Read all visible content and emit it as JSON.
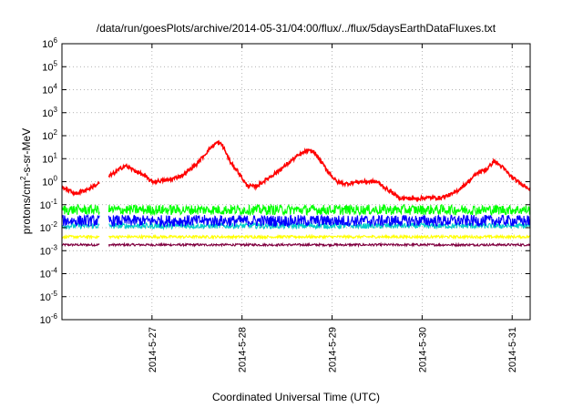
{
  "chart_data": {
    "type": "line",
    "title": "/data/run/goesPlots/archive/2014-05-31/04:00/flux/../flux/5daysEarthDataFluxes.txt",
    "xlabel": "Coordinated Universal Time (UTC)",
    "ylabel": {
      "prefix": "protons/cm",
      "sup": "2",
      "suffix": "-s-sr-MeV"
    },
    "yscale": "log",
    "ylim_exponent": [
      -6,
      6
    ],
    "ytick_base": "10",
    "ytick_exponents": [
      "-6",
      "-5",
      "-4",
      "-3",
      "-2",
      "-1",
      "0",
      "1",
      "2",
      "3",
      "4",
      "5",
      "6"
    ],
    "xlim_days": [
      26.0,
      31.2
    ],
    "xticks": [
      {
        "label": "2014-5-27",
        "day": 27
      },
      {
        "label": "2014-5-28",
        "day": 28
      },
      {
        "label": "2014-5-29",
        "day": 29
      },
      {
        "label": "2014-5-30",
        "day": 30
      },
      {
        "label": "2014-5-31",
        "day": 31
      }
    ],
    "grid": true,
    "data_gap_days": [
      26.42,
      26.52
    ],
    "series": [
      {
        "color": "#ff0000",
        "noise_log": 0.08,
        "points": [
          [
            26.0,
            0.6
          ],
          [
            26.15,
            0.3
          ],
          [
            26.3,
            0.5
          ],
          [
            26.4,
            0.8
          ],
          [
            26.55,
            2.0
          ],
          [
            26.7,
            5.0
          ],
          [
            26.9,
            2.0
          ],
          [
            27.0,
            1.0
          ],
          [
            27.2,
            1.2
          ],
          [
            27.35,
            2.0
          ],
          [
            27.5,
            6.0
          ],
          [
            27.65,
            30.0
          ],
          [
            27.72,
            50.0
          ],
          [
            27.78,
            40.0
          ],
          [
            27.88,
            6.0
          ],
          [
            27.95,
            3.0
          ],
          [
            28.05,
            0.7
          ],
          [
            28.15,
            0.6
          ],
          [
            28.3,
            1.5
          ],
          [
            28.45,
            4.0
          ],
          [
            28.6,
            12.0
          ],
          [
            28.72,
            22.0
          ],
          [
            28.8,
            20.0
          ],
          [
            28.95,
            3.0
          ],
          [
            29.05,
            1.0
          ],
          [
            29.15,
            0.8
          ],
          [
            29.3,
            1.0
          ],
          [
            29.5,
            1.0
          ],
          [
            29.6,
            0.5
          ],
          [
            29.75,
            0.2
          ],
          [
            29.9,
            0.18
          ],
          [
            30.05,
            0.2
          ],
          [
            30.2,
            0.2
          ],
          [
            30.35,
            0.3
          ],
          [
            30.5,
            0.9
          ],
          [
            30.62,
            2.5
          ],
          [
            30.72,
            3.5
          ],
          [
            30.8,
            8.0
          ],
          [
            30.9,
            4.0
          ],
          [
            31.0,
            1.5
          ],
          [
            31.1,
            0.8
          ],
          [
            31.2,
            0.5
          ]
        ]
      },
      {
        "color": "#00ff00",
        "noise_log": 0.22,
        "points": [
          [
            26.0,
            0.06
          ],
          [
            31.2,
            0.06
          ]
        ]
      },
      {
        "color": "#0000ff",
        "noise_log": 0.25,
        "points": [
          [
            26.0,
            0.02
          ],
          [
            31.2,
            0.02
          ]
        ]
      },
      {
        "color": "#00cccc",
        "noise_log": 0.12,
        "points": [
          [
            26.0,
            0.012
          ],
          [
            31.2,
            0.012
          ]
        ]
      },
      {
        "color": "#ffff00",
        "noise_log": 0.06,
        "points": [
          [
            26.0,
            0.004
          ],
          [
            31.2,
            0.004
          ]
        ]
      },
      {
        "color": "#800040",
        "noise_log": 0.05,
        "points": [
          [
            26.0,
            0.0018
          ],
          [
            31.2,
            0.0018
          ]
        ]
      }
    ]
  }
}
